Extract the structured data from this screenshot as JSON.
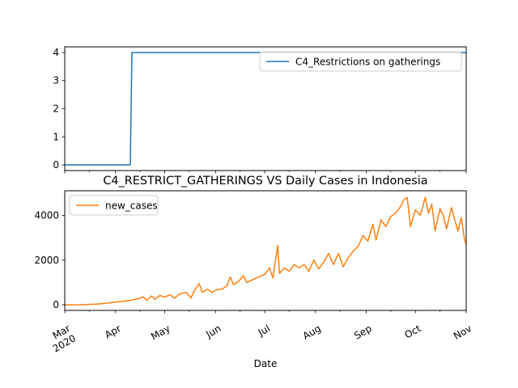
{
  "chart_data": [
    {
      "type": "line",
      "title": "",
      "xlabel": "",
      "ylabel": "",
      "ylim": [
        -0.2,
        4.2
      ],
      "yticks": [
        0,
        1,
        2,
        3,
        4
      ],
      "xlim": [
        "2020-03-01",
        "2020-11-01"
      ],
      "legend": "upper right",
      "series": [
        {
          "name": "C4_Restrictions on gatherings",
          "color": "#1f77b4",
          "points": [
            [
              "2020-03-01",
              0
            ],
            [
              "2020-04-10",
              0
            ],
            [
              "2020-04-11",
              4
            ],
            [
              "2020-11-01",
              4
            ]
          ]
        }
      ]
    },
    {
      "type": "line",
      "title": "C4_RESTRICT_GATHERINGS VS Daily Cases in Indonesia",
      "xlabel": "Date",
      "ylabel": "",
      "ylim": [
        -250,
        5100
      ],
      "yticks": [
        0,
        2000,
        4000
      ],
      "xlim": [
        "2020-03-01",
        "2020-11-01"
      ],
      "legend": "upper left",
      "xticks": [
        {
          "date": "2020-03-01",
          "label": "Mar",
          "sublabel": "2020"
        },
        {
          "date": "2020-04-01",
          "label": "Apr",
          "sublabel": ""
        },
        {
          "date": "2020-05-01",
          "label": "May",
          "sublabel": ""
        },
        {
          "date": "2020-06-01",
          "label": "Jun",
          "sublabel": ""
        },
        {
          "date": "2020-07-01",
          "label": "Jul",
          "sublabel": ""
        },
        {
          "date": "2020-08-01",
          "label": "Aug",
          "sublabel": ""
        },
        {
          "date": "2020-09-01",
          "label": "Sep",
          "sublabel": ""
        },
        {
          "date": "2020-10-01",
          "label": "Oct",
          "sublabel": ""
        },
        {
          "date": "2020-11-01",
          "label": "Nov",
          "sublabel": ""
        }
      ],
      "series": [
        {
          "name": "new_cases",
          "color": "#ff7f0e",
          "points": [
            [
              "2020-03-01",
              0
            ],
            [
              "2020-03-10",
              5
            ],
            [
              "2020-03-20",
              30
            ],
            [
              "2020-03-25",
              60
            ],
            [
              "2020-03-31",
              110
            ],
            [
              "2020-04-05",
              150
            ],
            [
              "2020-04-10",
              200
            ],
            [
              "2020-04-15",
              280
            ],
            [
              "2020-04-18",
              350
            ],
            [
              "2020-04-20",
              200
            ],
            [
              "2020-04-23",
              400
            ],
            [
              "2020-04-25",
              250
            ],
            [
              "2020-04-28",
              420
            ],
            [
              "2020-05-01",
              340
            ],
            [
              "2020-05-04",
              450
            ],
            [
              "2020-05-07",
              300
            ],
            [
              "2020-05-10",
              480
            ],
            [
              "2020-05-14",
              560
            ],
            [
              "2020-05-17",
              300
            ],
            [
              "2020-05-19",
              620
            ],
            [
              "2020-05-22",
              950
            ],
            [
              "2020-05-24",
              550
            ],
            [
              "2020-05-27",
              700
            ],
            [
              "2020-05-30",
              550
            ],
            [
              "2020-06-02",
              680
            ],
            [
              "2020-06-05",
              700
            ],
            [
              "2020-06-08",
              850
            ],
            [
              "2020-06-10",
              1250
            ],
            [
              "2020-06-12",
              900
            ],
            [
              "2020-06-15",
              1050
            ],
            [
              "2020-06-18",
              1300
            ],
            [
              "2020-06-20",
              1000
            ],
            [
              "2020-06-23",
              1100
            ],
            [
              "2020-06-26",
              1200
            ],
            [
              "2020-06-29",
              1300
            ],
            [
              "2020-07-01",
              1350
            ],
            [
              "2020-07-04",
              1650
            ],
            [
              "2020-07-06",
              1200
            ],
            [
              "2020-07-09",
              2650
            ],
            [
              "2020-07-10",
              1400
            ],
            [
              "2020-07-13",
              1650
            ],
            [
              "2020-07-16",
              1500
            ],
            [
              "2020-07-19",
              1800
            ],
            [
              "2020-07-22",
              1650
            ],
            [
              "2020-07-25",
              1800
            ],
            [
              "2020-07-28",
              1500
            ],
            [
              "2020-07-31",
              2000
            ],
            [
              "2020-08-03",
              1600
            ],
            [
              "2020-08-06",
              1900
            ],
            [
              "2020-08-09",
              2300
            ],
            [
              "2020-08-12",
              1800
            ],
            [
              "2020-08-15",
              2300
            ],
            [
              "2020-08-18",
              1700
            ],
            [
              "2020-08-21",
              2100
            ],
            [
              "2020-08-24",
              2400
            ],
            [
              "2020-08-27",
              2600
            ],
            [
              "2020-08-30",
              3100
            ],
            [
              "2020-09-02",
              2850
            ],
            [
              "2020-09-05",
              3600
            ],
            [
              "2020-09-07",
              2900
            ],
            [
              "2020-09-10",
              3800
            ],
            [
              "2020-09-13",
              3500
            ],
            [
              "2020-09-16",
              3950
            ],
            [
              "2020-09-19",
              4100
            ],
            [
              "2020-09-22",
              4400
            ],
            [
              "2020-09-24",
              4700
            ],
            [
              "2020-09-26",
              4800
            ],
            [
              "2020-09-28",
              3500
            ],
            [
              "2020-10-01",
              4250
            ],
            [
              "2020-10-04",
              4000
            ],
            [
              "2020-10-07",
              4800
            ],
            [
              "2020-10-09",
              4100
            ],
            [
              "2020-10-11",
              4500
            ],
            [
              "2020-10-13",
              3300
            ],
            [
              "2020-10-16",
              4300
            ],
            [
              "2020-10-18",
              4000
            ],
            [
              "2020-10-20",
              3400
            ],
            [
              "2020-10-23",
              4350
            ],
            [
              "2020-10-25",
              3800
            ],
            [
              "2020-10-27",
              3300
            ],
            [
              "2020-10-29",
              3900
            ],
            [
              "2020-10-31",
              2900
            ],
            [
              "2020-11-01",
              2700
            ]
          ]
        }
      ]
    }
  ]
}
